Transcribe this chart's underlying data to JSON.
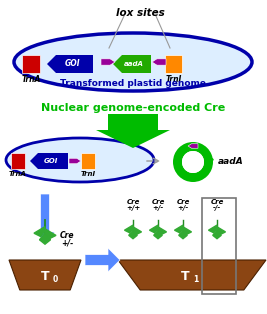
{
  "bg_color": "#ffffff",
  "lox_label": "lox sites",
  "genome_label": "Transformed plastid genome",
  "nuclear_label": "Nuclear genome-encoded Cre",
  "aadA_label": "aadA",
  "TrnA_label": "TrnA",
  "TrnI_label": "TrnI",
  "GOI_label": "GOI",
  "cre_t0_label": "Cre\n+/-",
  "T0_label": "T",
  "T1_label": "T",
  "cre_genotypes": [
    "Cre\n+/+",
    "Cre\n+/-",
    "Cre\n+/-",
    "Cre\n-/-"
  ],
  "dark_blue": "#0000AA",
  "bright_green": "#00BB00",
  "red_box": "#CC0000",
  "orange_box": "#FF8800",
  "purple_lox": "#990099",
  "green_aadA": "#22AA00",
  "brown_pot": "#8B4513",
  "light_blue_arrow": "#5588FF",
  "gray": "#999999",
  "dark_gray": "#666666"
}
